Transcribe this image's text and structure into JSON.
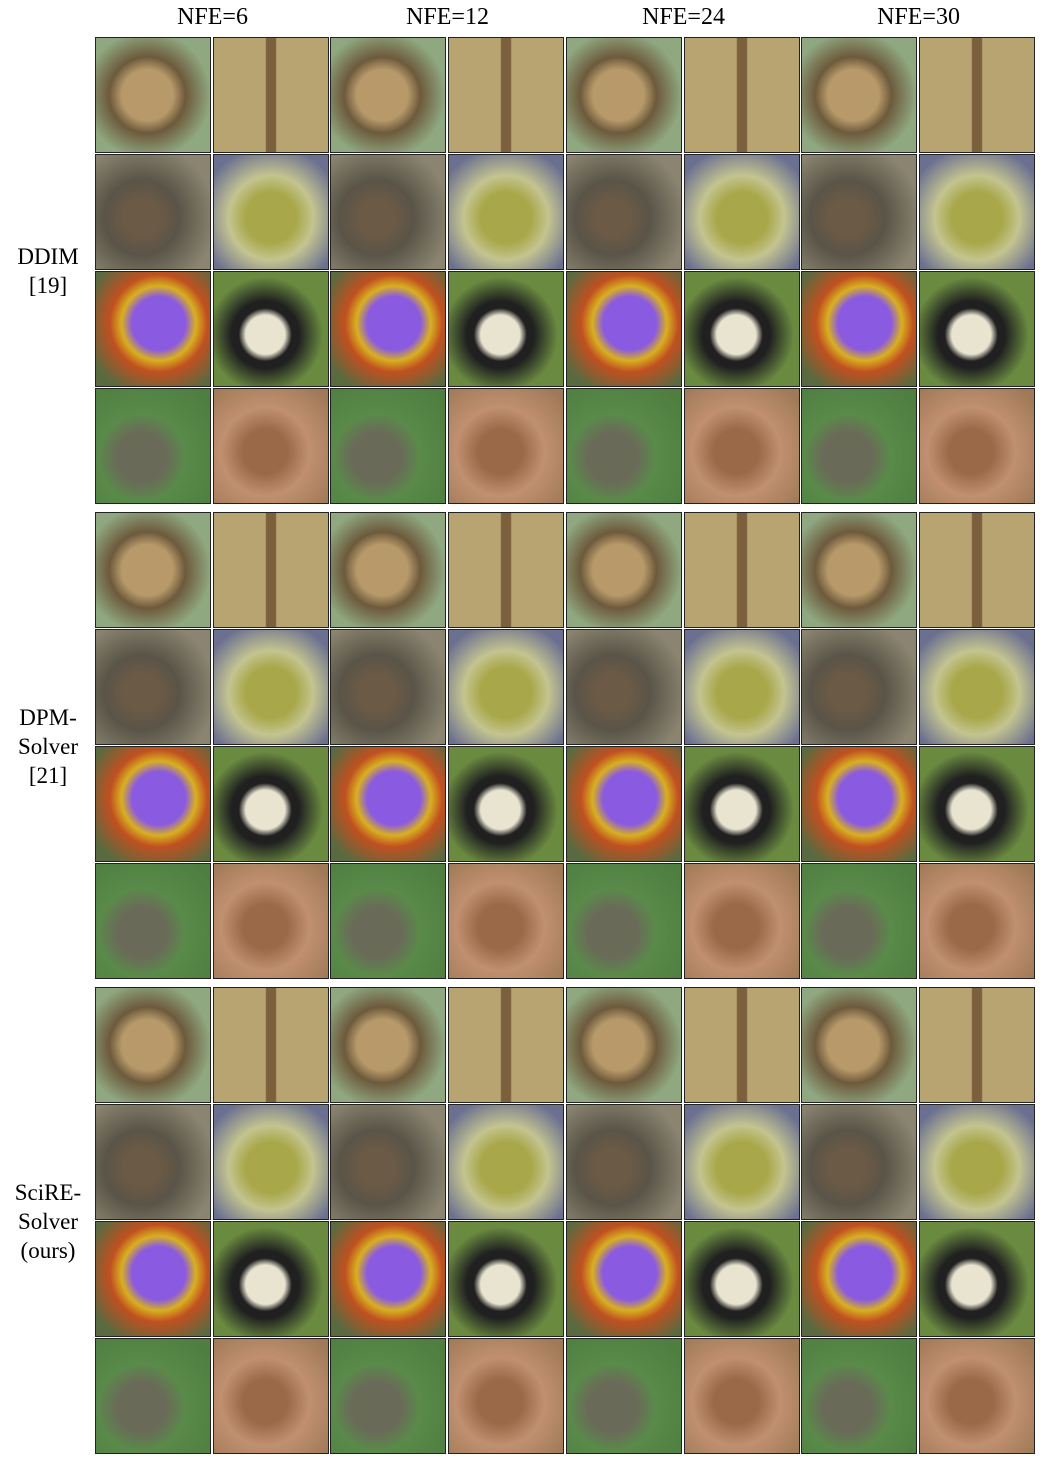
{
  "columns": [
    "NFE=6",
    "NFE=12",
    "NFE=24",
    "NFE=30"
  ],
  "methods": [
    {
      "label": [
        "DDIM",
        "[19]"
      ]
    },
    {
      "label": [
        "DPM-",
        "Solver",
        "[21]"
      ]
    },
    {
      "label": [
        "SciRE-",
        "Solver",
        "(ours)"
      ]
    }
  ]
}
